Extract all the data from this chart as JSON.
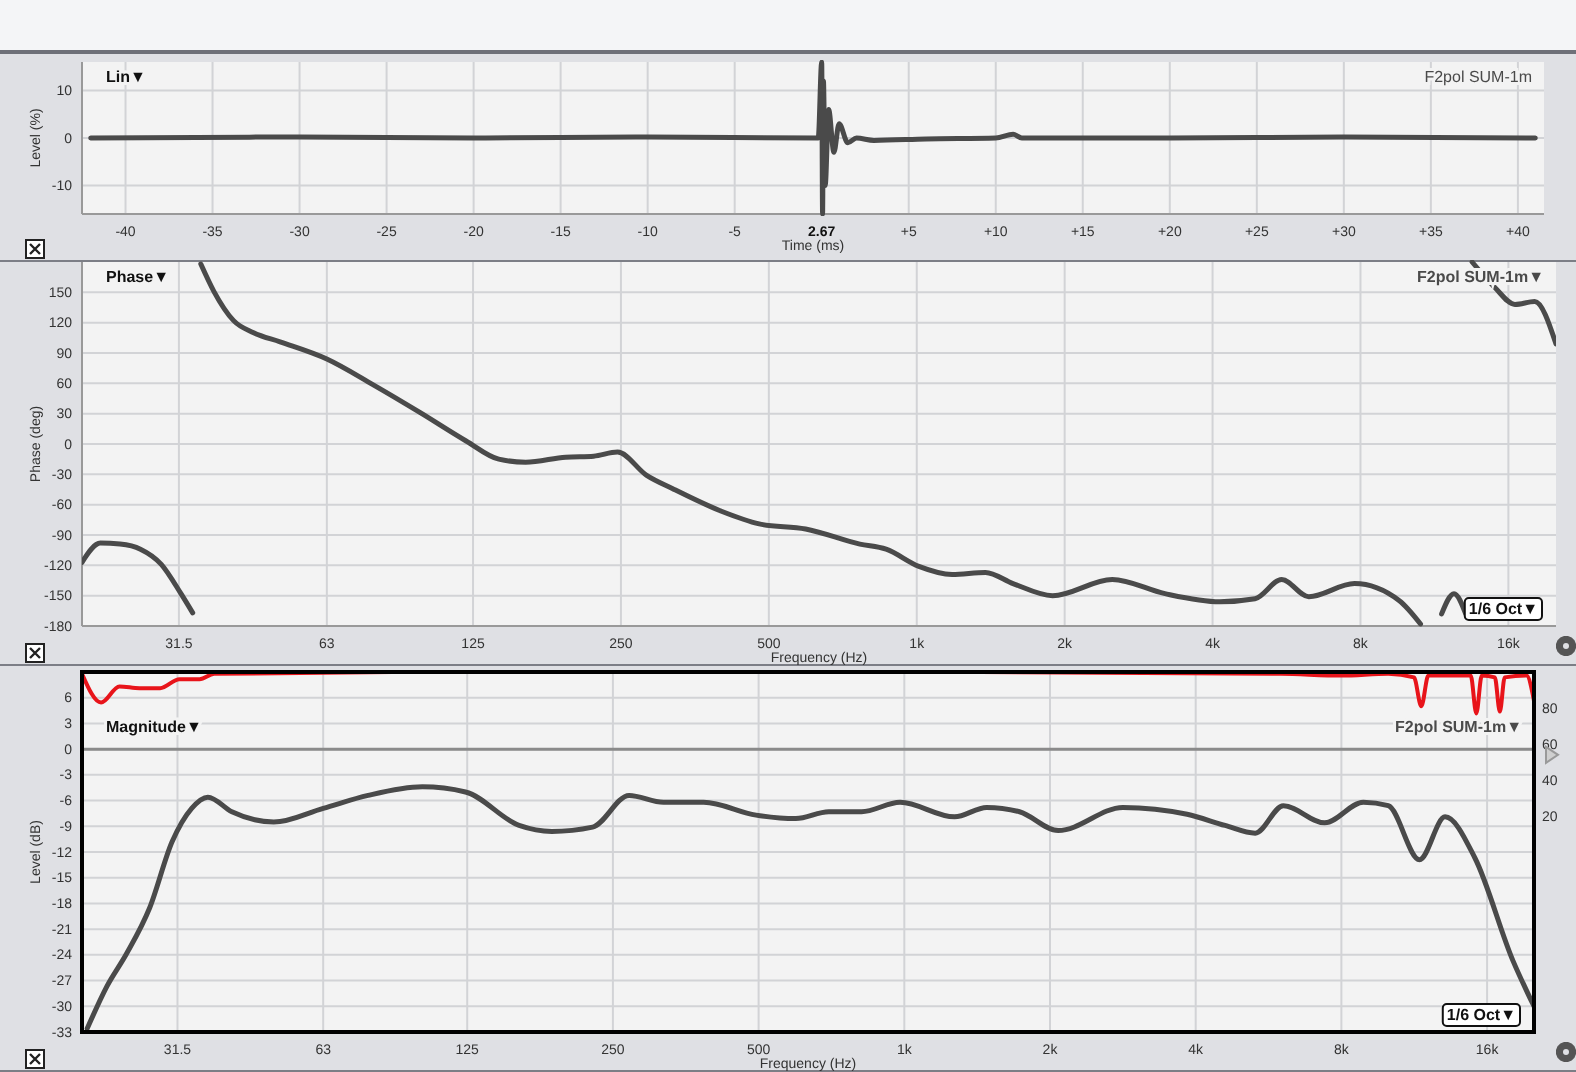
{
  "chart_data": [
    {
      "type": "line",
      "title": "Lin▼",
      "xlabel": "Time (ms)",
      "ylabel": "Level (%)",
      "xlim": [
        -42.5,
        41.5
      ],
      "ylim": [
        -16,
        16
      ],
      "xticks": [
        -40,
        -35,
        -30,
        -25,
        -20,
        -15,
        -10,
        -5,
        {
          "value": 5,
          "label": "+5"
        },
        {
          "value": 10,
          "label": "+10"
        },
        {
          "value": 15,
          "label": "+15"
        },
        {
          "value": 20,
          "label": "+20"
        },
        {
          "value": 25,
          "label": "+25"
        },
        {
          "value": 30,
          "label": "+30"
        },
        {
          "value": 35,
          "label": "+35"
        },
        {
          "value": 40,
          "label": "+40"
        }
      ],
      "yticks": [
        -10,
        0,
        10
      ],
      "grid": true,
      "legend": "top right",
      "annotations": [
        {
          "text": "2.67",
          "x": 0,
          "y": -16
        }
      ],
      "x": [
        -42,
        -30,
        -20,
        -10,
        -0.2,
        0,
        0.05,
        0.1,
        0.2,
        0.4,
        0.7,
        1,
        1.5,
        2,
        3,
        6,
        10,
        11,
        11.5,
        20,
        30,
        41
      ],
      "series": [
        {
          "name": "F2pol SUM-1m",
          "color": "#4a4a4a",
          "values": [
            0,
            0.2,
            0,
            0.2,
            0,
            16,
            -16,
            12,
            -10,
            6,
            -3,
            3,
            -1,
            0,
            -0.5,
            -0.2,
            0,
            0.8,
            0,
            0,
            0.2,
            0
          ]
        }
      ]
    },
    {
      "type": "line",
      "title": "Phase▼",
      "xlabel": "Frequency (Hz)",
      "ylabel": "Phase (deg)",
      "log": "x",
      "xlim": [
        20,
        20000
      ],
      "ylim": [
        -180,
        180
      ],
      "xticks": [
        31.5,
        63,
        125,
        250,
        500,
        {
          "value": 1000,
          "label": "1k"
        },
        {
          "value": 2000,
          "label": "2k"
        },
        {
          "value": 4000,
          "label": "4k"
        },
        {
          "value": 8000,
          "label": "8k"
        },
        {
          "value": 16000,
          "label": "16k"
        }
      ],
      "yticks": [
        -180,
        -150,
        -120,
        -90,
        -60,
        -30,
        0,
        30,
        60,
        90,
        120,
        150
      ],
      "grid": true,
      "legend": "top right",
      "annotations": [
        "1/6 Oct▼"
      ],
      "x": [
        20,
        21.8,
        23.9,
        26.3,
        29,
        31.8,
        33.6,
        34.2,
        34.9,
        37.1,
        40.7,
        44.7,
        50.6,
        63,
        78,
        97.6,
        121,
        141,
        160,
        193,
        220,
        246,
        282,
        318,
        398,
        478,
        594,
        766,
        866,
        1010,
        1180,
        1380,
        1570,
        1890,
        2500,
        3200,
        4140,
        4880,
        5530,
        6280,
        7780,
        9600,
        10600,
        11100,
        11700,
        12400,
        13100,
        13300,
        13500,
        15000,
        16500,
        18100,
        20000
      ],
      "series": [
        {
          "name": "F2pol SUM-1m▼",
          "color": "#4a4a4a",
          "values": [
            -117,
            -98,
            -99,
            -104,
            -119,
            -148,
            -167,
            null,
            178,
            151,
            122,
            110,
            101,
            84,
            59,
            31,
            3,
            -15,
            -18,
            -13,
            -12,
            -8,
            -31,
            -44,
            -66,
            -79,
            -84,
            -99,
            -104,
            -121,
            -129,
            -127,
            -138,
            -150,
            -134,
            -148,
            -156,
            -153,
            -134,
            -151,
            -138,
            -155,
            -178,
            null,
            -168,
            -148,
            -168,
            null,
            180,
            155,
            138,
            141,
            99
          ]
        }
      ]
    },
    {
      "type": "line",
      "title": "Magnitude▼",
      "xlabel": "Frequency (Hz)",
      "ylabel": "Level (dB)",
      "log": "x",
      "xlim": [
        20,
        20000
      ],
      "ylim": [
        -33,
        9
      ],
      "xticks": [
        31.5,
        63,
        125,
        250,
        500,
        {
          "value": 1000,
          "label": "1k"
        },
        {
          "value": 2000,
          "label": "2k"
        },
        {
          "value": 4000,
          "label": "4k"
        },
        {
          "value": 8000,
          "label": "8k"
        },
        {
          "value": 16000,
          "label": "16k"
        }
      ],
      "yticks": [
        -33,
        -30,
        -27,
        -24,
        -21,
        -18,
        -15,
        -12,
        -9,
        -6,
        -3,
        0,
        3,
        6
      ],
      "y2lim": [
        -100,
        100
      ],
      "y2ticks": [
        20,
        40,
        60,
        80
      ],
      "grid": true,
      "legend": "top right",
      "annotations": [
        "1/6 Oct▼"
      ],
      "ref_lines": [
        {
          "axis": "y",
          "value": 0,
          "color": "#8a8a8a"
        }
      ],
      "x": [
        20.5,
        22.5,
        24.7,
        27.6,
        30.7,
        33.7,
        36.4,
        40.8,
        49.8,
        63,
        78,
        101,
        124,
        160,
        187,
        227,
        270,
        318,
        385,
        494,
        597,
        698,
        816,
        980,
        1270,
        1480,
        1730,
        2080,
        2830,
        3840,
        4600,
        5310,
        6070,
        7390,
        8880,
        10000,
        11600,
        13100,
        15100,
        18100,
        20000
      ],
      "series": [
        {
          "name": "F2pol SUM-1m▼",
          "color": "#4a4a4a",
          "values": [
            -32.6,
            -27.7,
            -23.9,
            -18.5,
            -10.8,
            -6.9,
            -5.6,
            -7.3,
            -8.5,
            -6.9,
            -5.4,
            -4.4,
            -5,
            -8.9,
            -9.6,
            -9.1,
            -5.4,
            -6.2,
            -6.2,
            -7.7,
            -8.1,
            -7.3,
            -7.3,
            -6.2,
            -7.9,
            -6.8,
            -7.3,
            -9.5,
            -6.8,
            -7.6,
            -8.9,
            -9.8,
            -6.6,
            -8.6,
            -6.2,
            -6.6,
            -12.9,
            -7.9,
            -12.7,
            -24.7,
            -30
          ]
        },
        {
          "color": "#e8141a",
          "axis": "y2",
          "x": [
            20,
            21.9,
            23.9,
            26.3,
            29,
            31.8,
            35,
            37.5,
            100,
            1000,
            6000,
            8000,
            10000,
            11300,
            11700,
            12100,
            14800,
            15200,
            15600,
            16600,
            17000,
            17400,
            19300,
            20000
          ],
          "values": [
            99,
            83,
            92,
            91,
            91,
            96,
            96,
            99,
            100,
            100,
            99,
            98,
            99,
            97,
            81,
            98,
            98,
            77,
            98,
            97,
            78,
            97,
            98,
            84
          ]
        }
      ]
    }
  ]
}
